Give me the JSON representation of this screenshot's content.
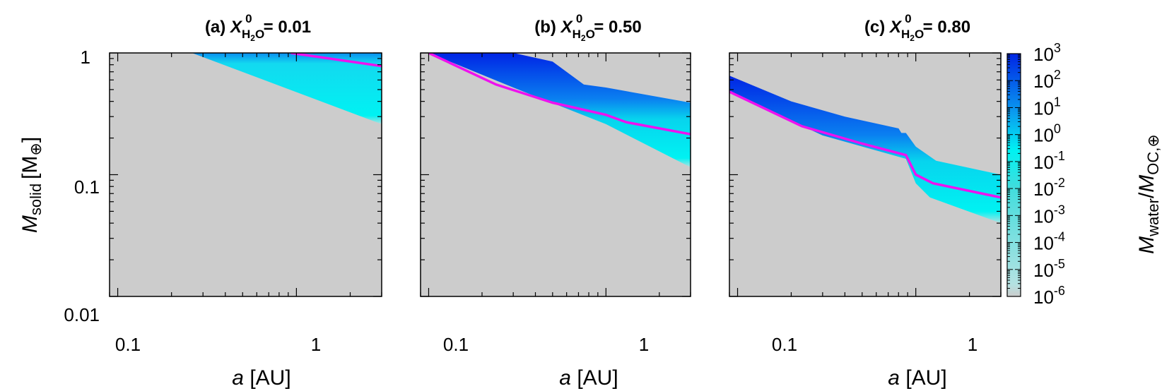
{
  "chart_data": [
    {
      "type": "heatmap",
      "title_prefix": "(a)",
      "title_symbol": "X",
      "title_sub": "H",
      "title_sub2": "2",
      "title_sub3": "O",
      "title_sup": "0",
      "title_value": "= 0.01",
      "xlabel_var": "a",
      "xlabel_unit": "[AU]",
      "ylabel_var": "M",
      "ylabel_sub": "solid",
      "ylabel_unit_open": "[M",
      "ylabel_unit_sym": "⊕",
      "ylabel_unit_close": "]",
      "xscale": "log",
      "yscale": "log",
      "xlim": [
        0.09,
        3.0
      ],
      "ylim": [
        0.01,
        1.0
      ],
      "xticks": [
        {
          "value": 0.1,
          "label": "0.1"
        },
        {
          "value": 1,
          "label": "1"
        }
      ],
      "yticks": [
        {
          "value": 1,
          "label": "1"
        },
        {
          "value": 0.1,
          "label": "0.1"
        },
        {
          "value": 0.01,
          "label": "0.01"
        }
      ],
      "lower_boundary": {
        "x": [
          0.26,
          3.0
        ],
        "y": [
          1.0,
          0.26
        ]
      },
      "upper_boundary": {
        "x": [
          0.26,
          3.0
        ],
        "y": [
          1.0,
          1.0
        ]
      },
      "magenta_line": {
        "x": [
          0.93,
          3.0
        ],
        "y": [
          1.0,
          0.78
        ]
      },
      "dark_band_dex": 0.12
    },
    {
      "type": "heatmap",
      "title_prefix": "(b)",
      "title_symbol": "X",
      "title_sub": "H",
      "title_sub2": "2",
      "title_sub3": "O",
      "title_sup": "0",
      "title_value": "= 0.50",
      "xlabel_var": "a",
      "xlabel_unit": "[AU]",
      "xscale": "log",
      "yscale": "log",
      "xlim": [
        0.09,
        3.0
      ],
      "ylim": [
        0.01,
        1.0
      ],
      "xticks": [
        {
          "value": 0.1,
          "label": "0.1"
        },
        {
          "value": 1,
          "label": "1"
        }
      ],
      "lower_boundary": {
        "x": [
          0.1,
          0.3,
          1.0,
          3.0
        ],
        "y": [
          1.0,
          0.52,
          0.26,
          0.115
        ]
      },
      "upper_boundary": {
        "x": [
          0.1,
          0.3,
          0.5,
          0.75,
          1.0,
          3.0
        ],
        "y": [
          1.0,
          1.0,
          0.85,
          0.55,
          0.52,
          0.39
        ]
      },
      "magenta_line": {
        "x": [
          0.1,
          0.24,
          0.5,
          1.0,
          1.3,
          3.0
        ],
        "y": [
          1.0,
          0.55,
          0.39,
          0.31,
          0.27,
          0.215
        ]
      }
    },
    {
      "type": "heatmap",
      "title_prefix": "(c)",
      "title_symbol": "X",
      "title_sub": "H",
      "title_sub2": "2",
      "title_sub3": "O",
      "title_sup": "0",
      "title_value": "= 0.80",
      "xlabel_var": "a",
      "xlabel_unit": "[AU]",
      "xscale": "log",
      "yscale": "log",
      "xlim": [
        0.09,
        3.0
      ],
      "ylim": [
        0.01,
        1.0
      ],
      "xticks": [
        {
          "value": 0.1,
          "label": "0.1"
        },
        {
          "value": 1,
          "label": "1"
        }
      ],
      "lower_boundary": {
        "x": [
          0.09,
          0.3,
          0.88,
          1.0,
          1.2,
          3.0
        ],
        "y": [
          0.48,
          0.21,
          0.135,
          0.085,
          0.065,
          0.04
        ]
      },
      "upper_boundary": {
        "x": [
          0.09,
          0.2,
          0.4,
          0.8,
          0.83,
          0.88,
          1.0,
          1.3,
          3.0
        ],
        "y": [
          0.65,
          0.4,
          0.3,
          0.24,
          0.22,
          0.22,
          0.17,
          0.13,
          0.1
        ]
      },
      "magenta_line": {
        "x": [
          0.09,
          0.23,
          0.5,
          0.88,
          1.0,
          1.25,
          3.0
        ],
        "y": [
          0.48,
          0.25,
          0.18,
          0.145,
          0.1,
          0.085,
          0.065
        ]
      }
    }
  ],
  "colorbar": {
    "label_var1": "M",
    "label_sub1": "water",
    "label_slash": "/",
    "label_var2": "M",
    "label_sub2": "OC,⊕",
    "scale": "log",
    "range": [
      1e-06,
      1000
    ],
    "ticks": [
      {
        "exp": 3,
        "base": "10",
        "sup": "3"
      },
      {
        "exp": 2,
        "base": "10",
        "sup": "2"
      },
      {
        "exp": 1,
        "base": "10",
        "sup": "1"
      },
      {
        "exp": 0,
        "base": "10",
        "sup": "0"
      },
      {
        "exp": -1,
        "base": "10",
        "sup": "-1"
      },
      {
        "exp": -2,
        "base": "10",
        "sup": "-2"
      },
      {
        "exp": -3,
        "base": "10",
        "sup": "-3"
      },
      {
        "exp": -4,
        "base": "10",
        "sup": "-4"
      },
      {
        "exp": -5,
        "base": "10",
        "sup": "-5"
      },
      {
        "exp": -6,
        "base": "10",
        "sup": "-6"
      }
    ]
  },
  "colors": {
    "background_region": "#cccccc",
    "cmap_low": "#b4e2e2",
    "cmap_mid": "#00f2f2",
    "cmap_high": "#0025e5",
    "magenta_line": "#ee11ee",
    "axis": "#000000"
  }
}
